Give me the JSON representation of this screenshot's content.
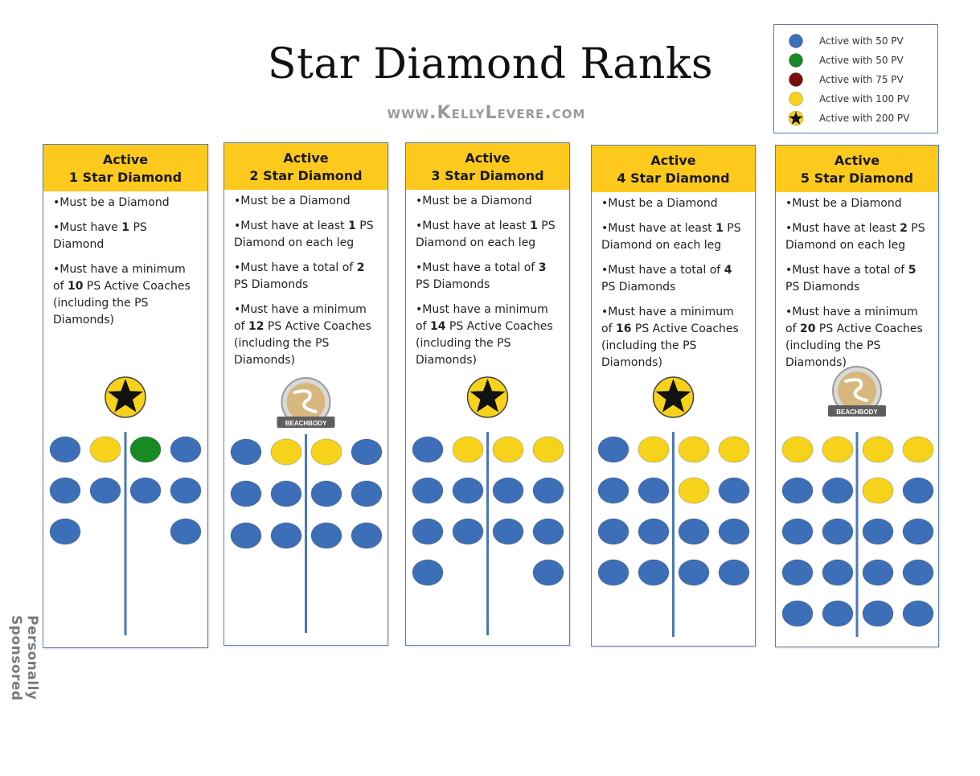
{
  "title": "Star Diamond Ranks",
  "url": "www.KellyLevere.com",
  "side_label": "Personally Sponsored",
  "colors": {
    "blue": "#3d6fb8",
    "green": "#178a24",
    "maroon": "#7a1010",
    "yellow": "#f7d21a",
    "header": "#fcc91c",
    "border": "#5b7fb5",
    "trunk": "#4a78b8"
  },
  "legend": [
    {
      "icon": "blue-circle-icon",
      "color": "blue",
      "label": "Active with 50 PV"
    },
    {
      "icon": "green-circle-icon",
      "color": "green",
      "label": "Active with 50 PV"
    },
    {
      "icon": "maroon-circle-icon",
      "color": "maroon",
      "label": "Active with 75 PV"
    },
    {
      "icon": "yellow-circle-icon",
      "color": "yellow",
      "label": "Active with 100 PV"
    },
    {
      "icon": "star-icon",
      "color": "yellow",
      "label": "Active with 200 PV"
    }
  ],
  "cards": [
    {
      "header_line1": "Active",
      "header_line2": "1 Star Diamond",
      "bullets": [
        [
          "•Must be a Diamond"
        ],
        [
          "•Must have ",
          {
            "b": "1"
          },
          " PS Diamond"
        ],
        [
          "•Must have a minimum of ",
          {
            "b": "10"
          },
          " PS Active Coaches (including the PS Diamonds)"
        ]
      ],
      "badge": "star-badge-icon",
      "rows": [
        [
          "blue",
          "yellow",
          "green",
          "blue"
        ],
        [
          "blue",
          "blue",
          "blue",
          "blue"
        ],
        [
          "blue",
          "",
          "",
          "blue"
        ]
      ]
    },
    {
      "header_line1": "Active",
      "header_line2": "2 Star Diamond",
      "bullets": [
        [
          "•Must be a Diamond"
        ],
        [
          "•Must have at least ",
          {
            "b": "1"
          },
          " PS Diamond on each leg"
        ],
        [
          "•Must have a total of ",
          {
            "b": "2"
          },
          " PS Diamonds"
        ],
        [
          "•Must have a minimum of ",
          {
            "b": "12"
          },
          " PS Active Coaches (including the PS Diamonds)"
        ]
      ],
      "badge": "beachbody-badge-icon",
      "badge_text": "BEACHBODY",
      "rows": [
        [
          "blue",
          "yellow",
          "yellow",
          "blue"
        ],
        [
          "blue",
          "blue",
          "blue",
          "blue"
        ],
        [
          "blue",
          "blue",
          "blue",
          "blue"
        ]
      ]
    },
    {
      "header_line1": "Active",
      "header_line2": "3 Star Diamond",
      "bullets": [
        [
          "•Must be a Diamond"
        ],
        [
          "•Must have at least ",
          {
            "b": "1"
          },
          " PS Diamond on each leg"
        ],
        [
          "•Must have a total of ",
          {
            "b": "3"
          },
          " PS Diamonds"
        ],
        [
          "•Must have a minimum of ",
          {
            "b": "14"
          },
          " PS Active Coaches (including the PS Diamonds)"
        ]
      ],
      "badge": "star-badge-icon",
      "rows": [
        [
          "blue",
          "yellow",
          "yellow",
          "yellow"
        ],
        [
          "blue",
          "blue",
          "blue",
          "blue"
        ],
        [
          "blue",
          "blue",
          "blue",
          "blue"
        ],
        [
          "blue",
          "",
          "",
          "blue"
        ]
      ]
    },
    {
      "header_line1": "Active",
      "header_line2": "4 Star Diamond",
      "bullets": [
        [
          "•Must be a Diamond"
        ],
        [
          "•Must have at least ",
          {
            "b": "1"
          },
          " PS Diamond on each leg"
        ],
        [
          "•Must have a total of ",
          {
            "b": "4"
          },
          " PS Diamonds"
        ],
        [
          "•Must have a minimum of ",
          {
            "b": "16"
          },
          " PS Active Coaches (including the PS Diamonds)"
        ]
      ],
      "badge": "star-badge-icon",
      "rows": [
        [
          "blue",
          "yellow",
          "yellow",
          "yellow"
        ],
        [
          "blue",
          "blue",
          "yellow",
          "blue"
        ],
        [
          "blue",
          "blue",
          "blue",
          "blue"
        ],
        [
          "blue",
          "blue",
          "blue",
          "blue"
        ]
      ]
    },
    {
      "header_line1": "Active",
      "header_line2": "5 Star Diamond",
      "bullets": [
        [
          "•Must be a Diamond"
        ],
        [
          "•Must have at least ",
          {
            "b": "2"
          },
          " PS Diamond on each leg"
        ],
        [
          "•Must have a total of ",
          {
            "b": "5"
          },
          " PS Diamonds"
        ],
        [
          "•Must have a minimum of ",
          {
            "b": "20"
          },
          " PS Active Coaches (including the PS Diamonds)"
        ]
      ],
      "badge": "beachbody-badge-icon",
      "badge_text": "BEACHBODY",
      "rows": [
        [
          "yellow",
          "yellow",
          "yellow",
          "yellow"
        ],
        [
          "blue",
          "blue",
          "yellow",
          "blue"
        ],
        [
          "blue",
          "blue",
          "blue",
          "blue"
        ],
        [
          "blue",
          "blue",
          "blue",
          "blue"
        ],
        [
          "blue",
          "blue",
          "blue",
          "blue"
        ]
      ]
    }
  ]
}
